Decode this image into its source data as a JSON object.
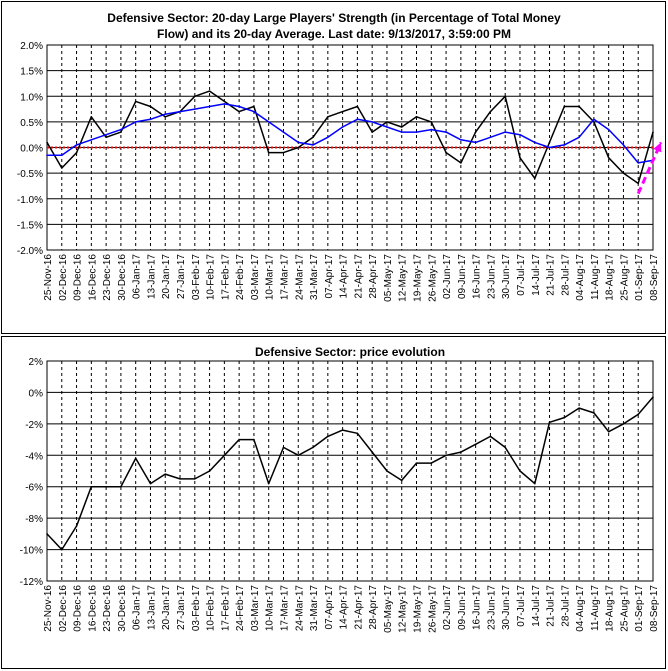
{
  "chart_data": [
    {
      "type": "line",
      "title": [
        "Defensive Sector: 20-day Large Players' Strength (in Percentage of Total Money",
        "Flow) and its 20-day Average. Last date: 9/13/2017, 3:59:00 PM"
      ],
      "categories": [
        "25-Nov-16",
        "02-Dec-16",
        "09-Dec-16",
        "16-Dec-16",
        "23-Dec-16",
        "30-Dec-16",
        "06-Jan-17",
        "13-Jan-17",
        "20-Jan-17",
        "27-Jan-17",
        "03-Feb-17",
        "10-Feb-17",
        "17-Feb-17",
        "24-Feb-17",
        "03-Mar-17",
        "10-Mar-17",
        "17-Mar-17",
        "24-Mar-17",
        "31-Mar-17",
        "07-Apr-17",
        "14-Apr-17",
        "21-Apr-17",
        "28-Apr-17",
        "05-May-17",
        "12-May-17",
        "19-May-17",
        "26-May-17",
        "02-Jun-17",
        "09-Jun-17",
        "16-Jun-17",
        "23-Jun-17",
        "30-Jun-17",
        "07-Jul-17",
        "14-Jul-17",
        "21-Jul-17",
        "28-Jul-17",
        "04-Aug-17",
        "11-Aug-17",
        "18-Aug-17",
        "25-Aug-17",
        "01-Sep-17",
        "08-Sep-17"
      ],
      "y_ticks": [
        "2.0%",
        "1.5%",
        "1.0%",
        "0.5%",
        "0.0%",
        "-0.5%",
        "-1.0%",
        "-1.5%",
        "-2.0%"
      ],
      "ylim": [
        -2.0,
        2.0
      ],
      "grid": true,
      "series": [
        {
          "color": "#000000",
          "values": [
            0.1,
            -0.4,
            -0.1,
            0.6,
            0.2,
            0.3,
            0.9,
            0.8,
            0.6,
            0.7,
            1.0,
            1.1,
            0.9,
            0.7,
            0.8,
            -0.1,
            -0.1,
            0.0,
            0.2,
            0.6,
            0.7,
            0.8,
            0.3,
            0.5,
            0.4,
            0.6,
            0.5,
            -0.1,
            -0.3,
            0.3,
            0.7,
            1.0,
            -0.2,
            -0.6,
            0.1,
            0.8,
            0.8,
            0.5,
            -0.2,
            -0.5,
            -0.7,
            0.3
          ]
        },
        {
          "color": "#0000ff",
          "values": [
            -0.15,
            -0.15,
            0.05,
            0.15,
            0.25,
            0.35,
            0.5,
            0.55,
            0.65,
            0.7,
            0.75,
            0.8,
            0.85,
            0.8,
            0.7,
            0.5,
            0.3,
            0.1,
            0.05,
            0.2,
            0.4,
            0.55,
            0.5,
            0.4,
            0.3,
            0.3,
            0.35,
            0.3,
            0.15,
            0.1,
            0.2,
            0.3,
            0.25,
            0.1,
            0.0,
            0.05,
            0.2,
            0.55,
            0.35,
            0.05,
            -0.3,
            -0.25
          ]
        }
      ],
      "reference_line": {
        "value": 0.0,
        "color": "#ff0000"
      },
      "trend_arrow": {
        "color": "#ff00ff",
        "from": {
          "x": "01-Sep-17",
          "y": -0.9
        },
        "to": {
          "x": "08-Sep-17",
          "y": 0.1
        }
      }
    },
    {
      "type": "line",
      "title": "Defensive Sector: price evolution",
      "categories": [
        "25-Nov-16",
        "02-Dec-16",
        "09-Dec-16",
        "16-Dec-16",
        "23-Dec-16",
        "30-Dec-16",
        "06-Jan-17",
        "13-Jan-17",
        "20-Jan-17",
        "27-Jan-17",
        "03-Feb-17",
        "10-Feb-17",
        "17-Feb-17",
        "24-Feb-17",
        "03-Mar-17",
        "10-Mar-17",
        "17-Mar-17",
        "24-Mar-17",
        "31-Mar-17",
        "07-Apr-17",
        "14-Apr-17",
        "21-Apr-17",
        "28-Apr-17",
        "05-May-17",
        "12-May-17",
        "19-May-17",
        "26-May-17",
        "02-Jun-17",
        "09-Jun-17",
        "16-Jun-17",
        "23-Jun-17",
        "30-Jun-17",
        "07-Jul-17",
        "14-Jul-17",
        "21-Jul-17",
        "28-Jul-17",
        "04-Aug-17",
        "11-Aug-17",
        "18-Aug-17",
        "25-Aug-17",
        "01-Sep-17",
        "08-Sep-17"
      ],
      "y_ticks": [
        "2%",
        "0%",
        "-2%",
        "-4%",
        "-6%",
        "-8%",
        "-10%",
        "-12%"
      ],
      "ylim": [
        -12,
        2
      ],
      "grid": true,
      "series": [
        {
          "color": "#000000",
          "values": [
            -9.0,
            -10.0,
            -8.5,
            -6.0,
            -6.0,
            -6.0,
            -4.2,
            -5.8,
            -5.2,
            -5.5,
            -5.5,
            -5.0,
            -4.0,
            -3.0,
            -3.0,
            -5.8,
            -3.5,
            -4.0,
            -3.5,
            -2.8,
            -2.4,
            -2.6,
            -3.8,
            -5.0,
            -5.6,
            -4.5,
            -4.5,
            -4.0,
            -3.8,
            -3.3,
            -2.8,
            -3.5,
            -5.0,
            -5.8,
            -1.9,
            -1.6,
            -1.0,
            -1.3,
            -2.5,
            -2.0,
            -1.4,
            -0.3
          ]
        }
      ]
    }
  ]
}
